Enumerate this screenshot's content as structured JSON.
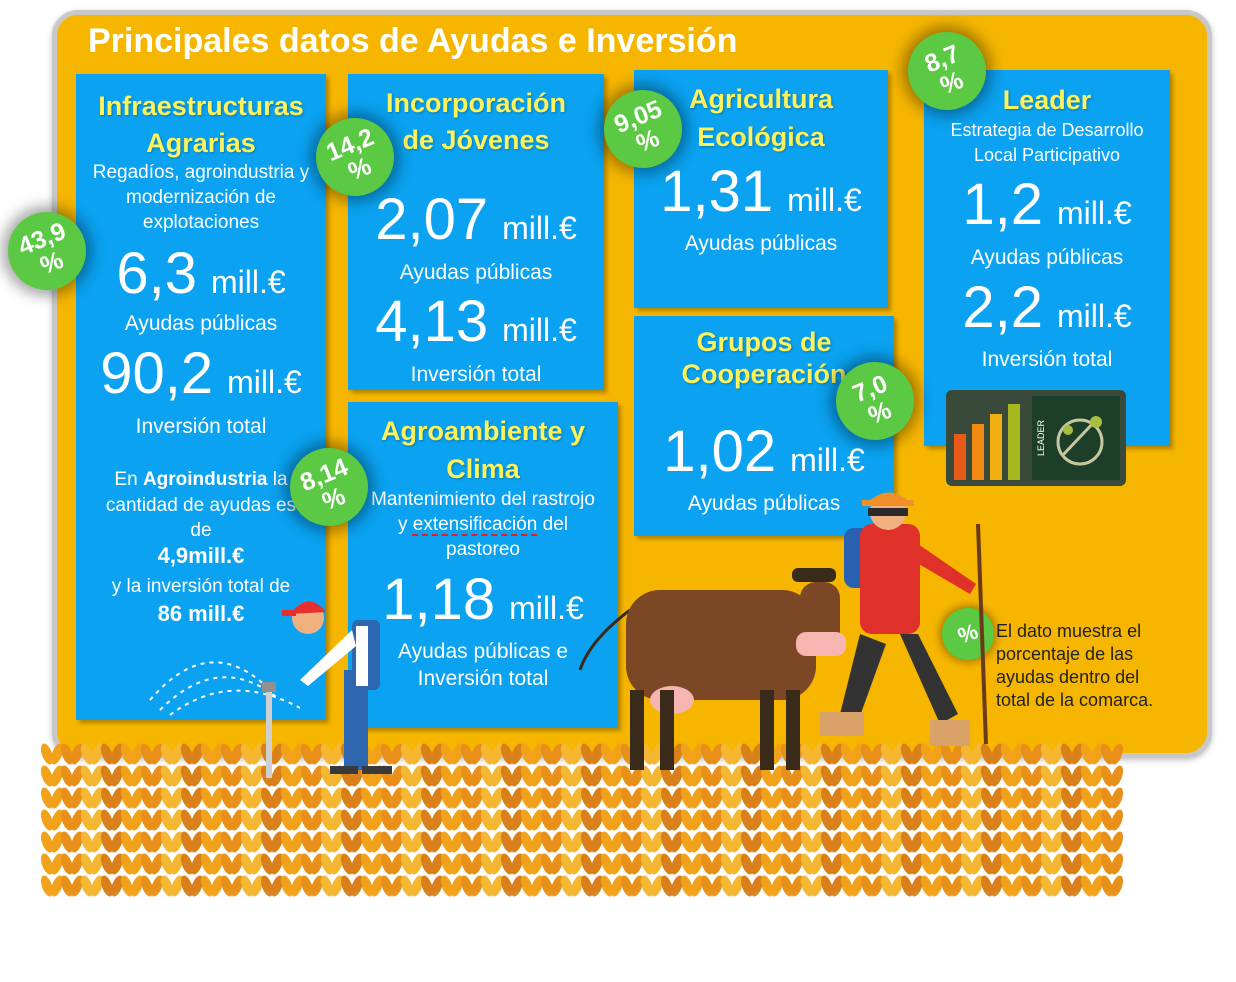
{
  "title": "Principales datos de Ayudas e Inversión",
  "unit": "mill.€",
  "panels": {
    "infra": {
      "title": [
        "Infraestructuras",
        "Agrarias"
      ],
      "subtitle": [
        "Regadíos, agroindustria y",
        "modernización de",
        "explotaciones"
      ],
      "aid_value": "6,3",
      "aid_label": "Ayudas públicas",
      "invest_value": "90,2",
      "invest_label": "Inversión total",
      "note": {
        "line1_pre": "En ",
        "line1_bold": "Agroindustria",
        "line1_post": " la",
        "line2": "cantidad de ayudas es",
        "line3": "de",
        "aid_amount": "4,9mill.€",
        "line5": "y la inversión total de",
        "invest_amount": "86 mill.€"
      },
      "badge": [
        "43,9",
        "%"
      ]
    },
    "jovenes": {
      "title": [
        "Incorporación",
        "de Jóvenes"
      ],
      "aid_value": "2,07",
      "aid_label": "Ayudas públicas",
      "invest_value": "4,13",
      "invest_label": "Inversión total",
      "badge": [
        "14,2",
        "%"
      ]
    },
    "agroambiente": {
      "title": [
        "Agroambiente y",
        "Clima"
      ],
      "subtitle_line1": "Mantenimiento del rastrojo",
      "subtitle_line2_pre": "y ",
      "subtitle_line2_underlined": "extensificación",
      "subtitle_line2_post": " del",
      "subtitle_line3": "pastoreo",
      "value": "1,18",
      "label": [
        "Ayudas públicas e",
        "Inversión total"
      ],
      "badge": [
        "8,14",
        "%"
      ]
    },
    "ecologica": {
      "title": [
        "Agricultura",
        "Ecológica"
      ],
      "value": "1,31",
      "label": "Ayudas públicas",
      "badge": [
        "9,05",
        "%"
      ]
    },
    "grupos": {
      "title": [
        "Grupos de",
        "Cooperación"
      ],
      "value": "1,02",
      "label": "Ayudas públicas",
      "badge": [
        "7,0",
        "%"
      ]
    },
    "leader": {
      "title": "Leader",
      "subtitle": [
        "Estrategia de Desarrollo",
        "Local Participativo"
      ],
      "aid_value": "1,2",
      "aid_label": "Ayudas públicas",
      "invest_value": "2,2",
      "invest_label": "Inversión total",
      "logo_text": "LEADER",
      "badge": [
        "8,7",
        "%"
      ]
    }
  },
  "legend": {
    "badge": "%",
    "text": [
      "El dato muestra el",
      "porcentaje de las",
      "ayudas dentro del",
      "total de la comarca."
    ]
  },
  "colors": {
    "board": "#f6b600",
    "panel": "#0aa2f1",
    "title_yellow": "#fdf25a",
    "badge_green": "#5bc944"
  }
}
